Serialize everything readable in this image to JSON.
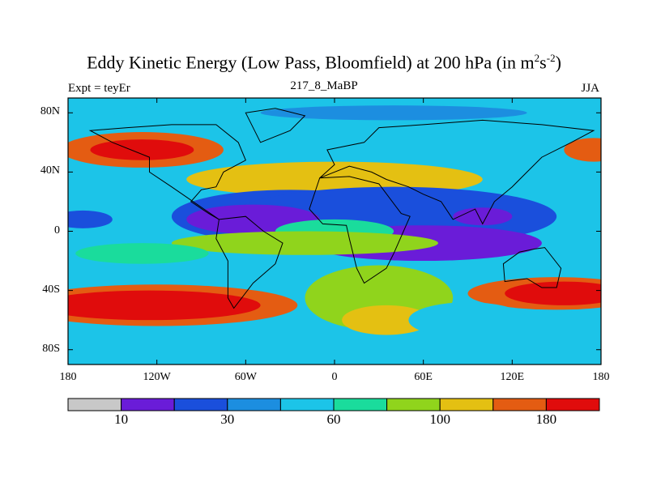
{
  "title_main": "Eddy Kinetic Energy (Low Pass, Bloomfield) at 200 hPa (in m",
  "title_sup1": "2",
  "title_mid": "s",
  "title_sup2": "-2",
  "title_end": ")",
  "subtitle": "217_8_MaBP",
  "left_label": "Expt = teyEr",
  "right_label": "JJA",
  "chart_data": {
    "type": "heatmap",
    "title": "Eddy Kinetic Energy (Low Pass, Bloomfield) at 200 hPa (in m^2 s^-2)",
    "subtitle": "217_8_MaBP",
    "xticks": [
      "180",
      "120W",
      "60W",
      "0",
      "60E",
      "120E",
      "180"
    ],
    "yticks": [
      "80N",
      "40N",
      "0",
      "40S",
      "80S"
    ],
    "xlim": [
      -180,
      180
    ],
    "ylim": [
      -90,
      90
    ],
    "colorbar": {
      "colors": [
        "#c8c8c8",
        "#6a1cd8",
        "#1a4fdc",
        "#1c8ee0",
        "#1cc4e8",
        "#1adc9c",
        "#90d41c",
        "#e4c012",
        "#e45c12",
        "#e00c0c"
      ],
      "labels": [
        "10",
        "30",
        "60",
        "100",
        "180"
      ]
    },
    "blobs": [
      {
        "lon": -130,
        "lat": 55,
        "rx": 55,
        "ry": 12,
        "level": 9
      },
      {
        "lon": -130,
        "lat": 55,
        "rx": 35,
        "ry": 7,
        "level": 10
      },
      {
        "lon": 175,
        "lat": 55,
        "rx": 20,
        "ry": 8,
        "level": 9
      },
      {
        "lon": -120,
        "lat": -50,
        "rx": 95,
        "ry": 14,
        "level": 9
      },
      {
        "lon": -125,
        "lat": -50,
        "rx": 75,
        "ry": 10,
        "level": 10
      },
      {
        "lon": 150,
        "lat": -42,
        "rx": 60,
        "ry": 11,
        "level": 9
      },
      {
        "lon": 155,
        "lat": -42,
        "rx": 40,
        "ry": 8,
        "level": 10
      },
      {
        "lon": 0,
        "lat": 35,
        "rx": 100,
        "ry": 12,
        "level": 8
      },
      {
        "lon": -30,
        "lat": 10,
        "rx": 80,
        "ry": 18,
        "level": 3
      },
      {
        "lon": 40,
        "lat": 10,
        "rx": 110,
        "ry": 20,
        "level": 3
      },
      {
        "lon": 60,
        "lat": -8,
        "rx": 80,
        "ry": 12,
        "level": 2
      },
      {
        "lon": -55,
        "lat": 8,
        "rx": 45,
        "ry": 10,
        "level": 2
      },
      {
        "lon": 100,
        "lat": 10,
        "rx": 20,
        "ry": 6,
        "level": 2
      },
      {
        "lon": -170,
        "lat": 8,
        "rx": 20,
        "ry": 6,
        "level": 3
      },
      {
        "lon": 0,
        "lat": 0,
        "rx": 40,
        "ry": 8,
        "level": 6
      },
      {
        "lon": -20,
        "lat": -8,
        "rx": 90,
        "ry": 8,
        "level": 7
      },
      {
        "lon": -130,
        "lat": -15,
        "rx": 45,
        "ry": 7,
        "level": 6
      },
      {
        "lon": 30,
        "lat": -45,
        "rx": 50,
        "ry": 22,
        "level": 7
      },
      {
        "lon": 35,
        "lat": -60,
        "rx": 30,
        "ry": 10,
        "level": 8
      },
      {
        "lon": 90,
        "lat": -60,
        "rx": 40,
        "ry": 12,
        "level": 5
      },
      {
        "lon": -100,
        "lat": 80,
        "rx": 50,
        "ry": 5,
        "level": 5
      },
      {
        "lon": 40,
        "lat": 80,
        "rx": 90,
        "ry": 5,
        "level": 4
      }
    ]
  }
}
